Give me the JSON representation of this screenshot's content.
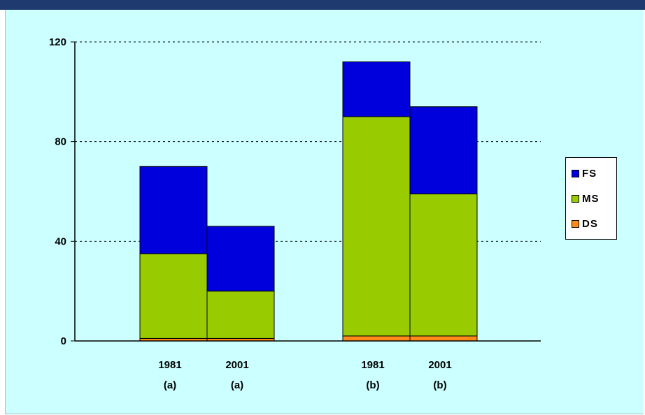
{
  "title_text": "",
  "colors": {
    "background": "#ccffff",
    "FS": "#0000dd",
    "MS": "#99cc00",
    "DS": "#ff8c1a"
  },
  "chart_data": {
    "type": "bar",
    "stacked": true,
    "categories": [
      {
        "year": "1981",
        "group": "(a)"
      },
      {
        "year": "2001",
        "group": "(a)"
      },
      {
        "year": "1981",
        "group": "(b)"
      },
      {
        "year": "2001",
        "group": "(b)"
      }
    ],
    "series": [
      {
        "name": "DS",
        "values": [
          1,
          1,
          2,
          2
        ]
      },
      {
        "name": "MS",
        "values": [
          34,
          19,
          88,
          57
        ]
      },
      {
        "name": "FS",
        "values": [
          35,
          26,
          22,
          35
        ]
      }
    ],
    "yticks": [
      "0",
      "40",
      "80",
      "120"
    ],
    "ylim": [
      0,
      120
    ],
    "grid": "dashed-horizontal",
    "legend_placement": "right",
    "legend_order": [
      "FS",
      "MS",
      "DS"
    ]
  }
}
